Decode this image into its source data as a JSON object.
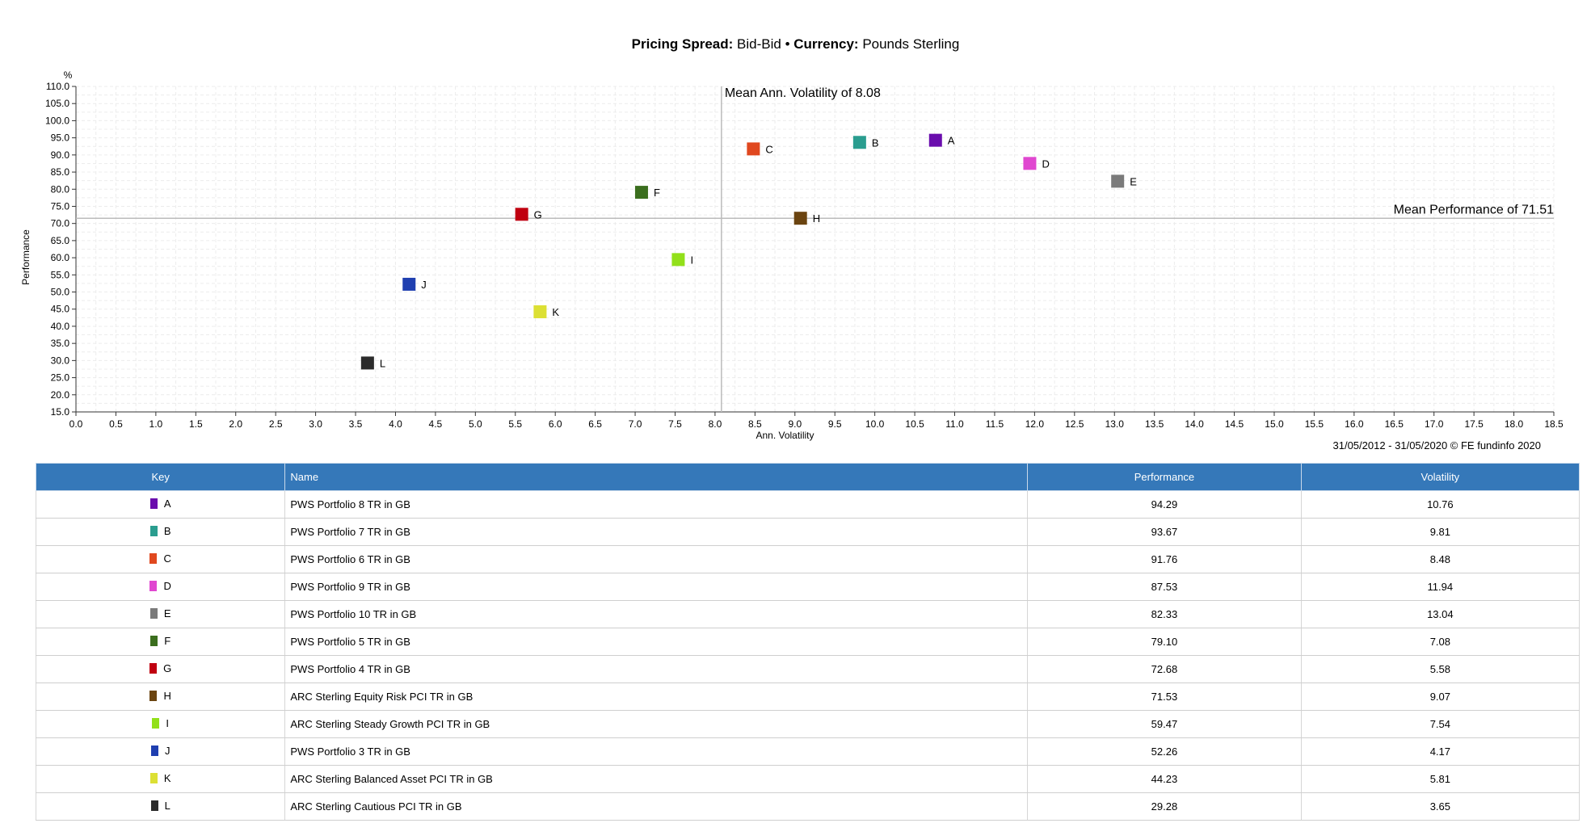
{
  "header": {
    "spread_label": "Pricing Spread:",
    "spread_value": "Bid-Bid",
    "separator": "•",
    "currency_label": "Currency:",
    "currency_value": "Pounds Sterling"
  },
  "chart_data": {
    "type": "scatter",
    "xlabel": "Ann. Volatility",
    "ylabel": "Performance",
    "y_unit": "%",
    "xlim": [
      0.0,
      18.5
    ],
    "ylim": [
      15.0,
      110.0
    ],
    "x_ticks": [
      "0.0",
      "0.5",
      "1.0",
      "1.5",
      "2.0",
      "2.5",
      "3.0",
      "3.5",
      "4.0",
      "4.5",
      "5.0",
      "5.5",
      "6.0",
      "6.5",
      "7.0",
      "7.5",
      "8.0",
      "8.5",
      "9.0",
      "9.5",
      "10.0",
      "10.5",
      "11.0",
      "11.5",
      "12.0",
      "12.5",
      "13.0",
      "13.5",
      "14.0",
      "14.5",
      "15.0",
      "15.5",
      "16.0",
      "16.5",
      "17.0",
      "17.5",
      "18.0",
      "18.5"
    ],
    "y_ticks": [
      "15.0",
      "20.0",
      "25.0",
      "30.0",
      "35.0",
      "40.0",
      "45.0",
      "50.0",
      "55.0",
      "60.0",
      "65.0",
      "70.0",
      "75.0",
      "80.0",
      "85.0",
      "90.0",
      "95.0",
      "100.0",
      "105.0",
      "110.0"
    ],
    "grid": true,
    "mean_volatility": {
      "value": 8.08,
      "label": "Mean Ann. Volatility of 8.08"
    },
    "mean_performance": {
      "value": 71.51,
      "label": "Mean Performance of 71.51"
    },
    "points": [
      {
        "key": "A",
        "x": 10.76,
        "y": 94.29,
        "color": "#6a0dad"
      },
      {
        "key": "B",
        "x": 9.81,
        "y": 93.67,
        "color": "#2a9d8f"
      },
      {
        "key": "C",
        "x": 8.48,
        "y": 91.76,
        "color": "#e0481f"
      },
      {
        "key": "D",
        "x": 11.94,
        "y": 87.53,
        "color": "#e047d0"
      },
      {
        "key": "E",
        "x": 13.04,
        "y": 82.33,
        "color": "#7a7a7a"
      },
      {
        "key": "F",
        "x": 7.08,
        "y": 79.1,
        "color": "#3b6e1e"
      },
      {
        "key": "G",
        "x": 5.58,
        "y": 72.68,
        "color": "#c00010"
      },
      {
        "key": "H",
        "x": 9.07,
        "y": 71.53,
        "color": "#6b4410"
      },
      {
        "key": "I",
        "x": 7.54,
        "y": 59.47,
        "color": "#92e01a"
      },
      {
        "key": "J",
        "x": 4.17,
        "y": 52.26,
        "color": "#1f3fb0"
      },
      {
        "key": "K",
        "x": 5.81,
        "y": 44.23,
        "color": "#dce034"
      },
      {
        "key": "L",
        "x": 3.65,
        "y": 29.28,
        "color": "#2b2b2b"
      }
    ]
  },
  "source": "31/05/2012 - 31/05/2020 © FE fundinfo 2020",
  "table": {
    "headers": {
      "key": "Key",
      "name": "Name",
      "performance": "Performance",
      "volatility": "Volatility"
    },
    "rows": [
      {
        "key": "A",
        "name": "PWS Portfolio 8 TR in GB",
        "performance": "94.29",
        "volatility": "10.76",
        "color": "#6a0dad"
      },
      {
        "key": "B",
        "name": "PWS Portfolio 7 TR in GB",
        "performance": "93.67",
        "volatility": "9.81",
        "color": "#2a9d8f"
      },
      {
        "key": "C",
        "name": "PWS Portfolio 6 TR in GB",
        "performance": "91.76",
        "volatility": "8.48",
        "color": "#e0481f"
      },
      {
        "key": "D",
        "name": "PWS Portfolio 9 TR in GB",
        "performance": "87.53",
        "volatility": "11.94",
        "color": "#e047d0"
      },
      {
        "key": "E",
        "name": "PWS Portfolio 10 TR in GB",
        "performance": "82.33",
        "volatility": "13.04",
        "color": "#7a7a7a"
      },
      {
        "key": "F",
        "name": "PWS Portfolio 5 TR in GB",
        "performance": "79.10",
        "volatility": "7.08",
        "color": "#3b6e1e"
      },
      {
        "key": "G",
        "name": "PWS Portfolio 4 TR in GB",
        "performance": "72.68",
        "volatility": "5.58",
        "color": "#c00010"
      },
      {
        "key": "H",
        "name": "ARC Sterling Equity Risk PCI TR in GB",
        "performance": "71.53",
        "volatility": "9.07",
        "color": "#6b4410"
      },
      {
        "key": "I",
        "name": "ARC Sterling Steady Growth PCI TR in GB",
        "performance": "59.47",
        "volatility": "7.54",
        "color": "#92e01a"
      },
      {
        "key": "J",
        "name": "PWS Portfolio 3 TR in GB",
        "performance": "52.26",
        "volatility": "4.17",
        "color": "#1f3fb0"
      },
      {
        "key": "K",
        "name": "ARC Sterling Balanced Asset PCI TR in GB",
        "performance": "44.23",
        "volatility": "5.81",
        "color": "#dce034"
      },
      {
        "key": "L",
        "name": "ARC Sterling Cautious PCI TR in GB",
        "performance": "29.28",
        "volatility": "3.65",
        "color": "#2b2b2b"
      }
    ]
  }
}
